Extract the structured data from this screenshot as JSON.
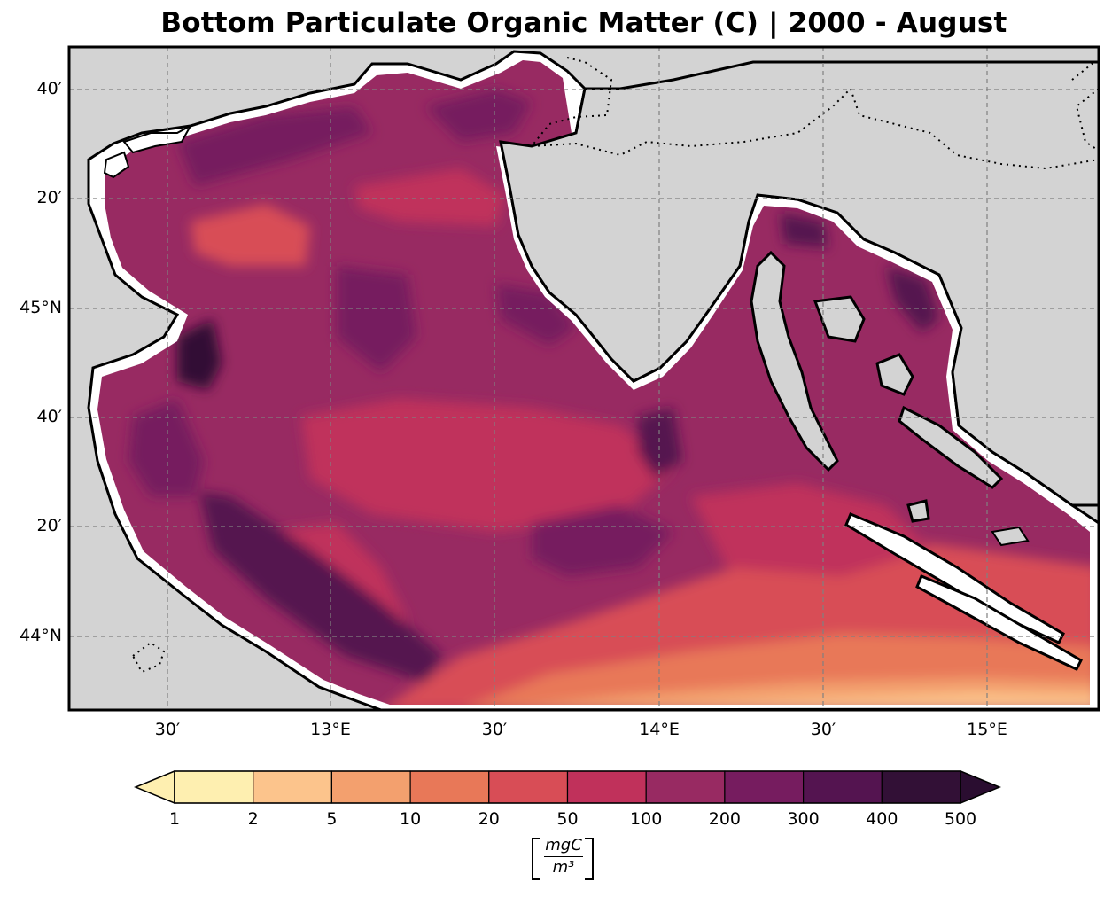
{
  "title": "Bottom Particulate Organic Matter (C) | 2000 - August",
  "map": {
    "lat_ticks": [
      "40′",
      "20′",
      "45°N",
      "40′",
      "20′",
      "44°N"
    ],
    "lon_ticks": [
      "30′",
      "13°E",
      "30′",
      "14°E",
      "30′",
      "15°E"
    ],
    "colors": {
      "land": "#d3d3d3",
      "frame": "#000000",
      "grid": "#808080"
    }
  },
  "colorbar": {
    "labels": [
      "1",
      "2",
      "5",
      "10",
      "20",
      "50",
      "100",
      "200",
      "300",
      "400",
      "500"
    ],
    "colors": [
      "#feefb0",
      "#fcc48c",
      "#f3a06e",
      "#e87858",
      "#d84d56",
      "#c0315b",
      "#982a62",
      "#761c5f",
      "#541450",
      "#321036"
    ],
    "under_color": "#feefb0",
    "over_color": "#2a0d30",
    "units_numerator": "mgC",
    "units_denominator": "m³"
  }
}
